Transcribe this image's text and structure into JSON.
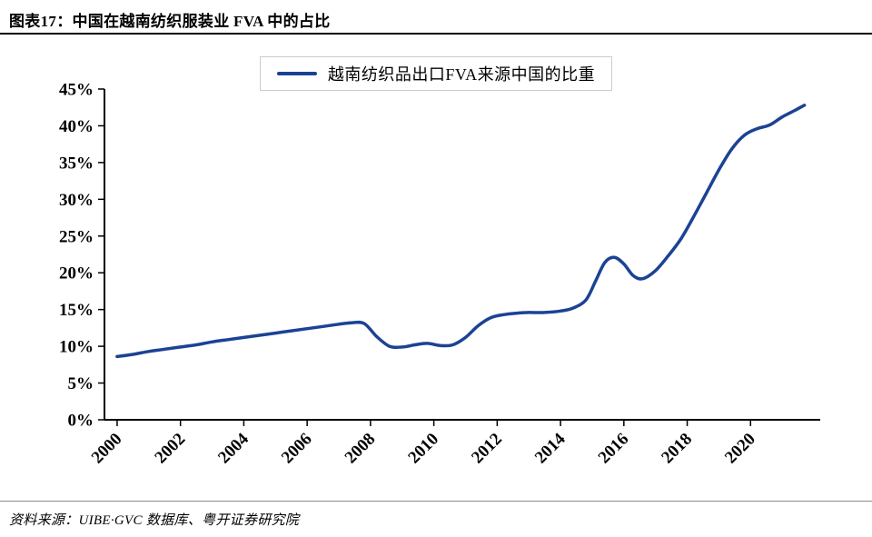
{
  "header": {
    "title": "图表17：中国在越南纺织服装业 FVA 中的占比"
  },
  "footer": {
    "source": "资料来源：UIBE·GVC 数据库、粤开证券研究院"
  },
  "chart_data": {
    "type": "line",
    "title": "图表17：中国在越南纺织服装业 FVA 中的占比",
    "legend": [
      "越南纺织品出口FVA来源中国的比重"
    ],
    "legend_position": "top-center",
    "line_color": "#1b4394",
    "axis_color": "#000000",
    "grid": false,
    "xlabel": "",
    "ylabel": "",
    "xlim": [
      1999.6,
      2022.2
    ],
    "ylim": [
      0,
      45
    ],
    "x_ticks": [
      2000,
      2002,
      2004,
      2006,
      2008,
      2010,
      2012,
      2014,
      2016,
      2018,
      2020
    ],
    "y_ticks": [
      0,
      5,
      10,
      15,
      20,
      25,
      30,
      35,
      40,
      45
    ],
    "y_tick_suffix": "%",
    "x": [
      2000,
      2000.5,
      2001,
      2001.5,
      2002,
      2002.5,
      2003,
      2003.5,
      2004,
      2004.5,
      2005,
      2005.5,
      2006,
      2006.5,
      2007,
      2007.4,
      2007.8,
      2008.2,
      2008.6,
      2009,
      2009.4,
      2009.8,
      2010.2,
      2010.6,
      2011,
      2011.4,
      2011.8,
      2012.2,
      2012.6,
      2013,
      2013.5,
      2014,
      2014.4,
      2014.8,
      2015.1,
      2015.4,
      2015.7,
      2016,
      2016.3,
      2016.6,
      2017,
      2017.4,
      2017.8,
      2018.2,
      2018.6,
      2019,
      2019.4,
      2019.8,
      2020.2,
      2020.6,
      2021,
      2021.4,
      2021.7
    ],
    "series": [
      {
        "name": "越南纺织品出口FVA来源中国的比重",
        "values": [
          8.6,
          8.9,
          9.3,
          9.6,
          9.9,
          10.2,
          10.6,
          10.9,
          11.2,
          11.5,
          11.8,
          12.1,
          12.4,
          12.7,
          13.0,
          13.2,
          13.1,
          11.3,
          10.0,
          9.9,
          10.2,
          10.4,
          10.1,
          10.2,
          11.2,
          12.8,
          13.9,
          14.3,
          14.5,
          14.6,
          14.6,
          14.8,
          15.2,
          16.3,
          18.8,
          21.4,
          22.1,
          21.2,
          19.6,
          19.2,
          20.3,
          22.3,
          24.6,
          27.6,
          30.8,
          34.0,
          36.8,
          38.7,
          39.6,
          40.1,
          41.2,
          42.1,
          42.8
        ]
      }
    ]
  }
}
